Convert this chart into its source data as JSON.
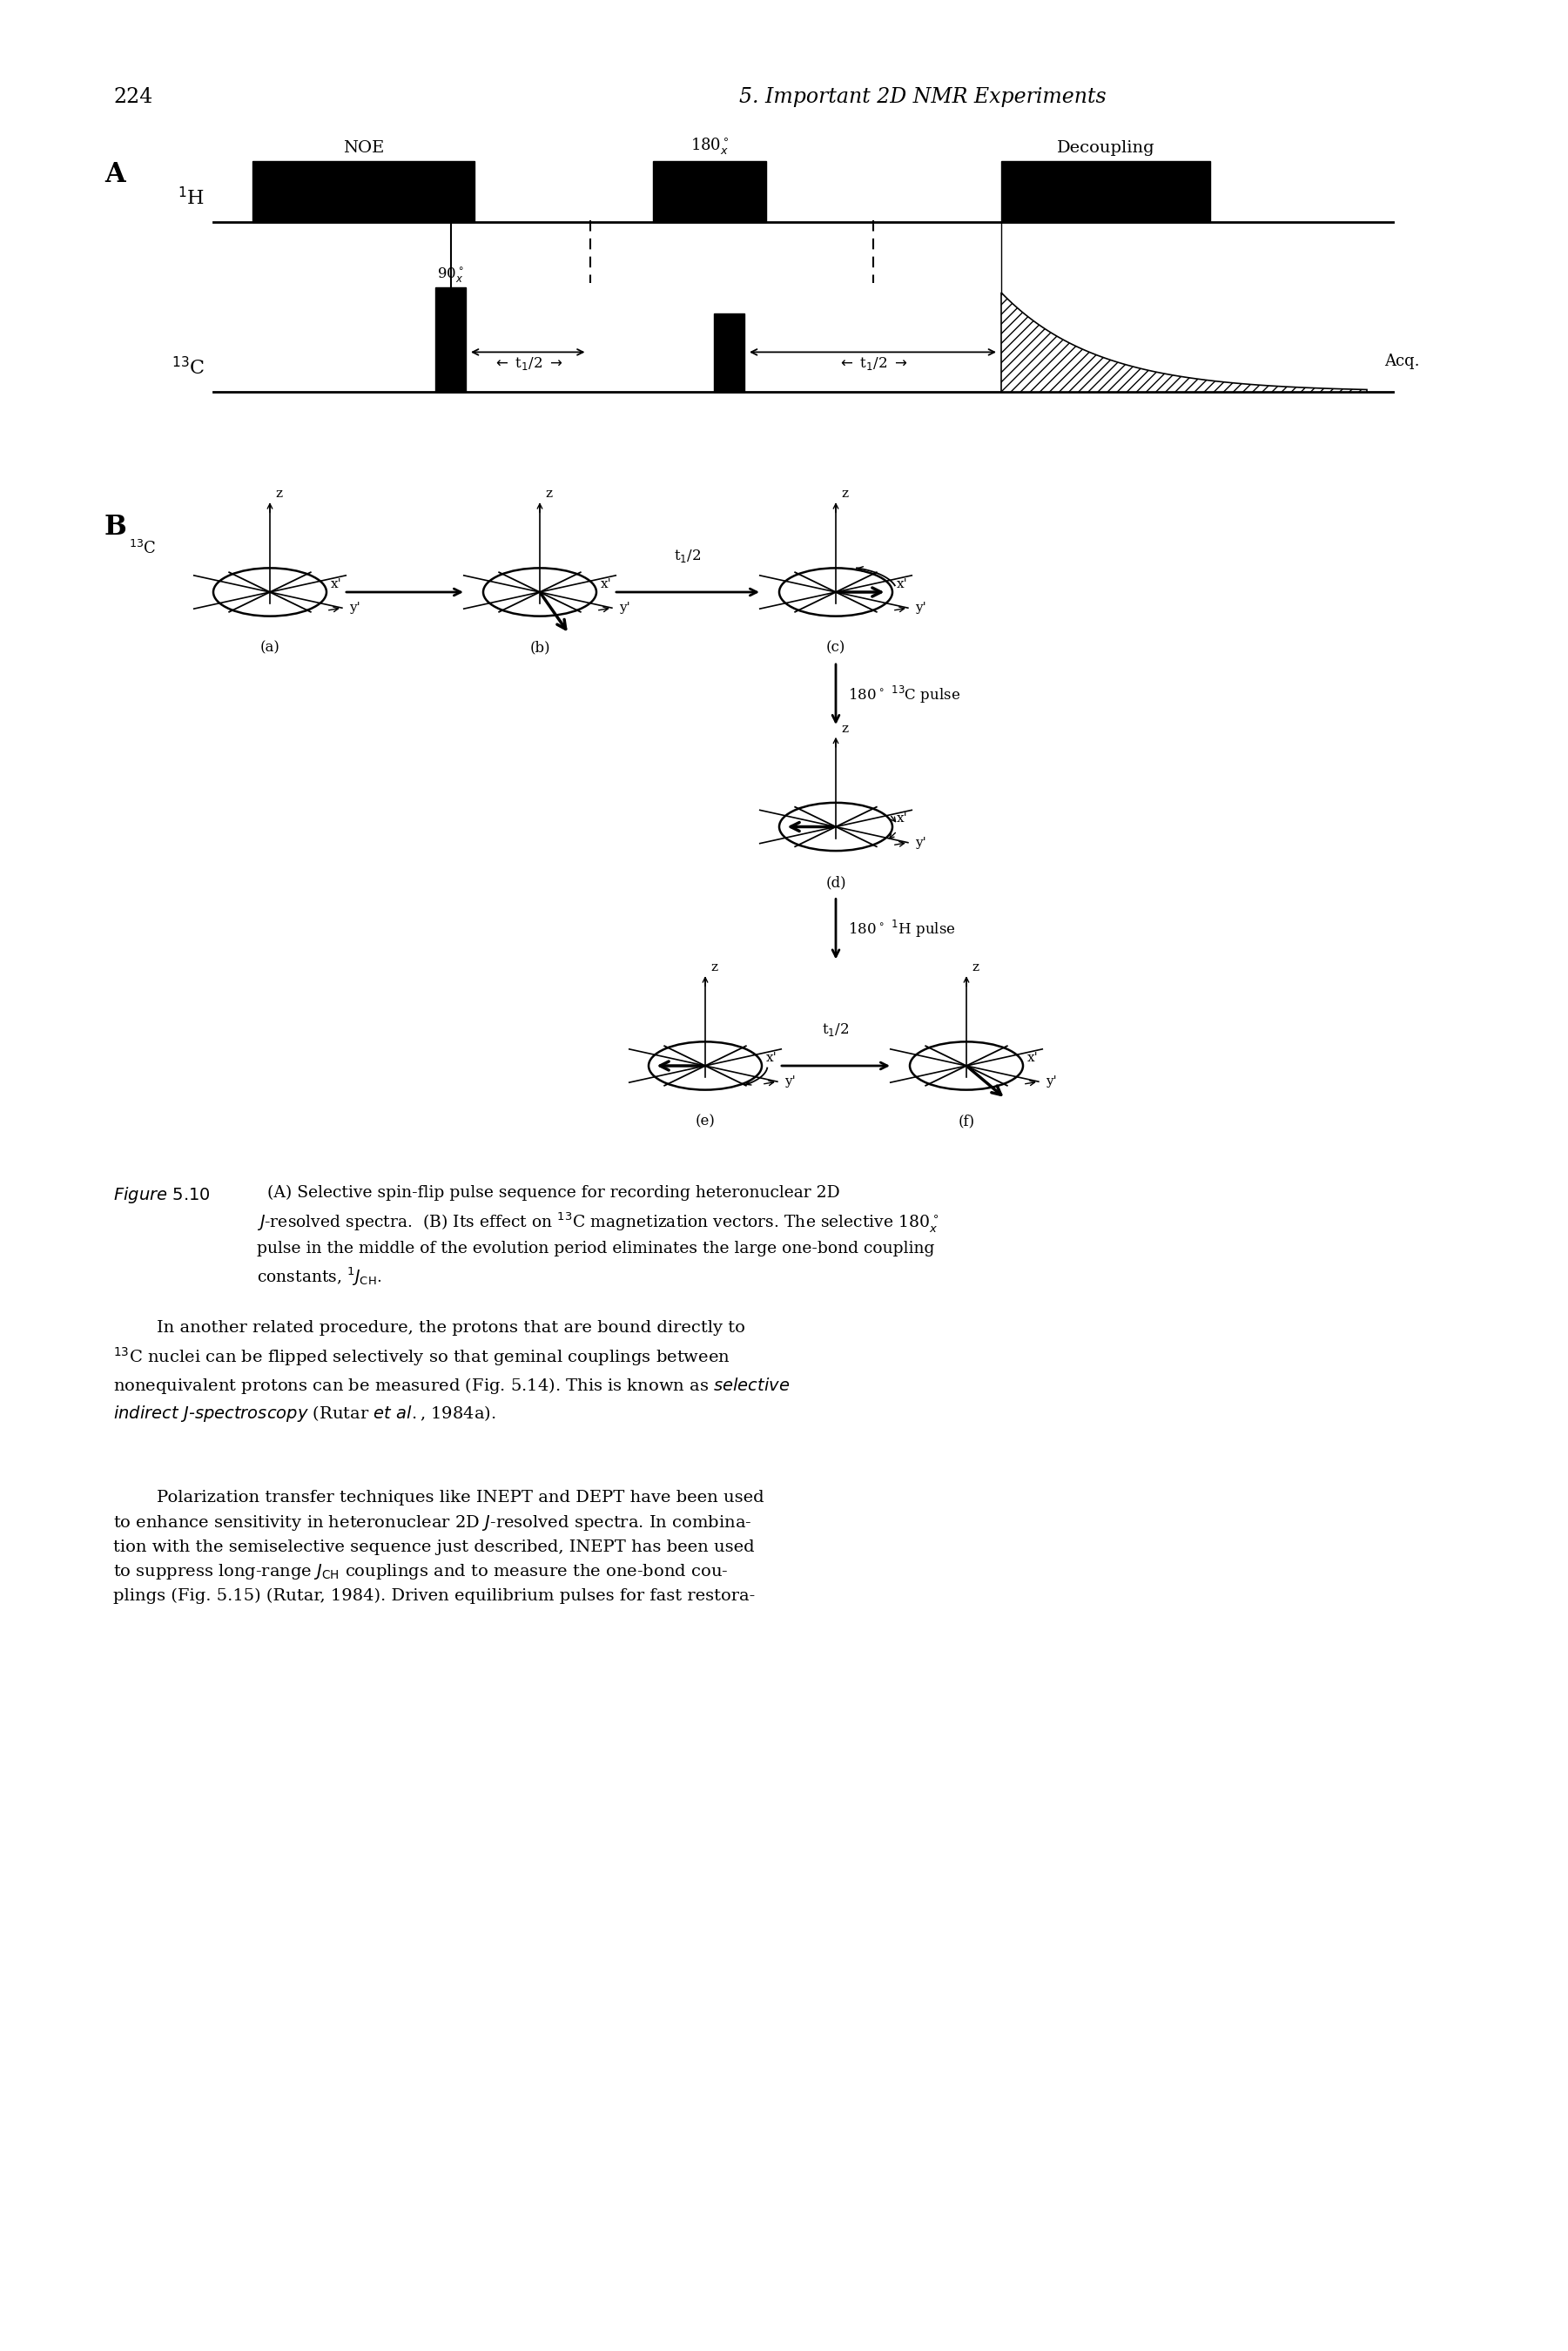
{
  "page_number": "224",
  "header_title": "5. Important 2D NMR Experiments",
  "bg_color": "#ffffff",
  "text_color": "#000000",
  "section_A_label": "A",
  "section_B_label": "B",
  "NOE_label": "NOE",
  "decoupling_label": "Decoupling",
  "Acq_label": "Acq.",
  "caption_bold": "Figure 5.10",
  "caption_text": "(A) Selective spin-flip pulse sequence for recording heteronuclear 2D J-resolved spectra. (B) Its effect on 13C magnetization vectors. The selective 180 pulse in the middle of the evolution period eliminates the large one-bond coupling constants, 1JCH.",
  "body_text1": "In another related procedure, the protons that are bound directly to 13C nuclei can be flipped selectively so that geminal couplings between nonequivalent protons can be measured (Fig. 5.14). This is known as selective indirect J-spectroscopy (Rutar et al., 1984a).",
  "body_text2": "Polarization transfer techniques like INEPT and DEPT have been used to enhance sensitivity in heteronuclear 2D J-resolved spectra. In combination with the semiselective sequence just described, INEPT has been used to suppress long-range JCH couplings and to measure the one-bond couplings (Fig. 5.15) (Rutar, 1984). Driven equilibrium pulses for fast restora-"
}
